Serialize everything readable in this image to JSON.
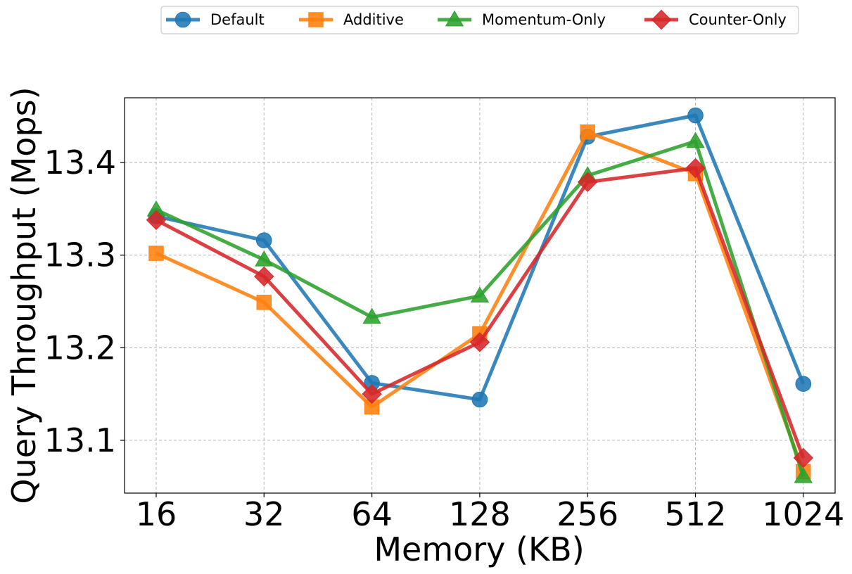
{
  "chart_data": {
    "type": "line",
    "title": "",
    "xlabel": "Memory (KB)",
    "ylabel": "Query Throughput (Mops)",
    "categories": [
      "16",
      "32",
      "64",
      "128",
      "256",
      "512",
      "1024"
    ],
    "ylim": [
      13.043,
      13.47
    ],
    "yticks": [
      "13.1",
      "13.2",
      "13.3",
      "13.4"
    ],
    "ytick_values": [
      13.1,
      13.2,
      13.3,
      13.4
    ],
    "grid": true,
    "legend_position": "top-center",
    "series": [
      {
        "name": "Default",
        "color": "#1f77b4",
        "marker": "circle",
        "values": [
          13.342,
          13.316,
          13.162,
          13.144,
          13.428,
          13.451,
          13.161
        ]
      },
      {
        "name": "Additive",
        "color": "#ff7f0e",
        "marker": "square",
        "values": [
          13.302,
          13.249,
          13.136,
          13.215,
          13.433,
          13.388,
          13.066
        ]
      },
      {
        "name": "Momentum-Only",
        "color": "#2ca02c",
        "marker": "triangle",
        "values": [
          13.349,
          13.295,
          13.233,
          13.256,
          13.386,
          13.423,
          13.061
        ]
      },
      {
        "name": "Counter-Only",
        "color": "#d62728",
        "marker": "diamond",
        "values": [
          13.338,
          13.277,
          13.15,
          13.206,
          13.379,
          13.394,
          13.081
        ]
      }
    ]
  }
}
